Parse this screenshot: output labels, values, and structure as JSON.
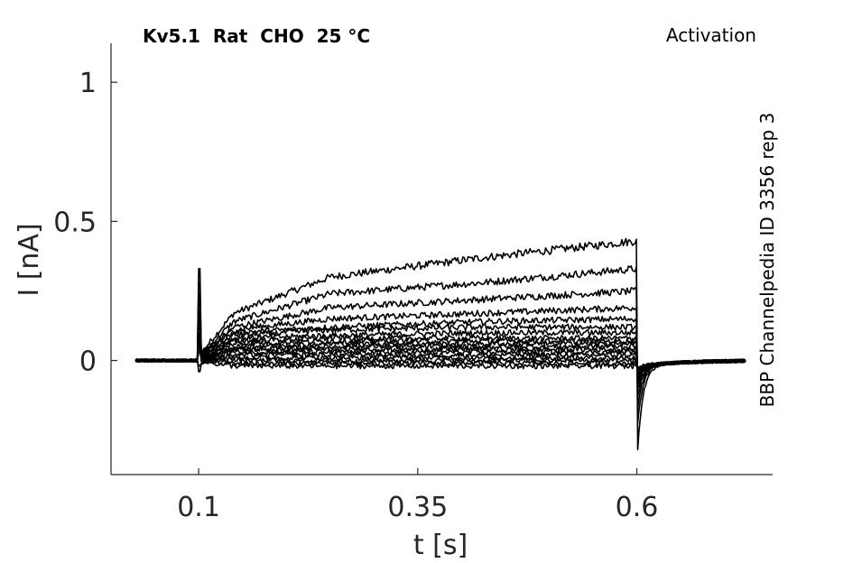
{
  "chart_data": {
    "type": "line",
    "title": "Kv5.1  Rat  CHO  25 °C",
    "protocol": "Activation",
    "side_label": "BBP Channelpedia ID 3356 rep 3",
    "xlabel": "t [s]",
    "ylabel": "I [nA]",
    "xlim": [
      0.0,
      0.755
    ],
    "ylim": [
      -0.41,
      1.14
    ],
    "xticks": [
      0.1,
      0.35,
      0.6
    ],
    "xtick_labels": [
      "0.1",
      "0.35",
      "0.6"
    ],
    "yticks": [
      0,
      0.5,
      1
    ],
    "ytick_labels": [
      "0",
      "0.5",
      "1"
    ],
    "grid": false,
    "line_color": "#000000",
    "pulse_start": 0.1,
    "pulse_end": 0.6,
    "trace_start": 0.028,
    "trace_end": 0.725,
    "series": [
      {
        "plateau": [
          0.17,
          0.3,
          0.37,
          0.43
        ],
        "spike": 0.33,
        "tail": -0.36
      },
      {
        "plateau": [
          0.14,
          0.24,
          0.28,
          0.33
        ],
        "spike": 0.28,
        "tail": -0.25
      },
      {
        "plateau": [
          0.12,
          0.19,
          0.22,
          0.25
        ],
        "spike": 0.24,
        "tail": -0.18
      },
      {
        "plateau": [
          0.11,
          0.15,
          0.17,
          0.19
        ],
        "spike": 0.21,
        "tail": -0.13
      },
      {
        "plateau": [
          0.1,
          0.12,
          0.14,
          0.15
        ],
        "spike": 0.18,
        "tail": -0.1
      },
      {
        "plateau": [
          0.09,
          0.11,
          0.12,
          0.12
        ],
        "spike": 0.16,
        "tail": -0.08
      },
      {
        "plateau": [
          0.08,
          0.09,
          0.1,
          0.1
        ],
        "spike": 0.14,
        "tail": -0.07
      },
      {
        "plateau": [
          0.07,
          0.08,
          0.08,
          0.08
        ],
        "spike": 0.12,
        "tail": -0.06
      },
      {
        "plateau": [
          0.06,
          0.07,
          0.07,
          0.07
        ],
        "spike": 0.1,
        "tail": -0.05
      },
      {
        "plateau": [
          0.05,
          0.06,
          0.06,
          0.06
        ],
        "spike": 0.09,
        "tail": -0.04
      },
      {
        "plateau": [
          0.04,
          0.05,
          0.05,
          0.05
        ],
        "spike": 0.08,
        "tail": -0.04
      },
      {
        "plateau": [
          0.04,
          0.04,
          0.04,
          0.04
        ],
        "spike": 0.07,
        "tail": -0.03
      },
      {
        "plateau": [
          0.03,
          0.03,
          0.03,
          0.03
        ],
        "spike": 0.06,
        "tail": -0.03
      },
      {
        "plateau": [
          0.02,
          0.02,
          0.02,
          0.02
        ],
        "spike": 0.05,
        "tail": -0.02
      },
      {
        "plateau": [
          0.01,
          0.01,
          0.01,
          0.01
        ],
        "spike": 0.04,
        "tail": -0.02
      },
      {
        "plateau": [
          0.0,
          0.0,
          0.0,
          0.0
        ],
        "spike": 0.03,
        "tail": -0.01
      },
      {
        "plateau": [
          -0.01,
          -0.01,
          -0.01,
          -0.01
        ],
        "spike": -0.02,
        "tail": -0.01
      },
      {
        "plateau": [
          -0.02,
          -0.02,
          -0.02,
          -0.02
        ],
        "spike": -0.04,
        "tail": 0.0
      }
    ]
  }
}
